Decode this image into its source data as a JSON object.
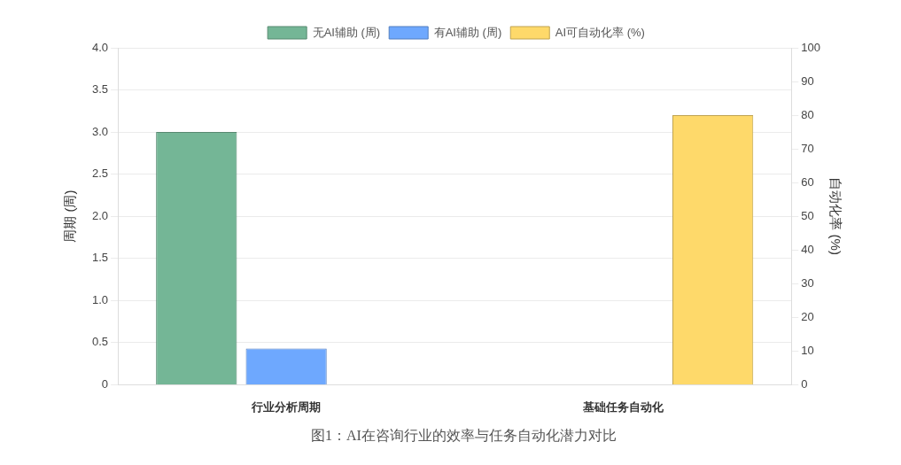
{
  "chart_data": {
    "type": "bar",
    "categories": [
      "行业分析周期",
      "基础任务自动化"
    ],
    "series": [
      {
        "name": "无AI辅助 (周)",
        "color": "#74b696",
        "values": [
          3.0,
          null
        ]
      },
      {
        "name": "有AI辅助 (周)",
        "color": "#6ea8fe",
        "values": [
          0.43,
          null
        ]
      },
      {
        "name": "AI可自动化率 (%)",
        "color": "#fed96a",
        "values": [
          null,
          80
        ],
        "axis": "y2"
      }
    ],
    "ylabel": "周期 (周)",
    "y2label": "自动化率 (%)",
    "ylim": [
      0,
      4
    ],
    "yticks": [
      0,
      0.5,
      {
        "value": 1,
        "label": "1.0"
      },
      1.5,
      {
        "value": 2,
        "label": "2.0"
      },
      2.5,
      {
        "value": 3,
        "label": "3.0"
      },
      3.5,
      {
        "value": 4,
        "label": "4.0"
      }
    ],
    "y2lim": [
      0,
      100
    ],
    "y2ticks": [
      0,
      10,
      20,
      30,
      40,
      50,
      60,
      70,
      80,
      90,
      100
    ],
    "grid": "y",
    "legend": "top",
    "annotations": [
      "图1：AI在咨询行业的效率与任务自动化潜力对比"
    ]
  }
}
